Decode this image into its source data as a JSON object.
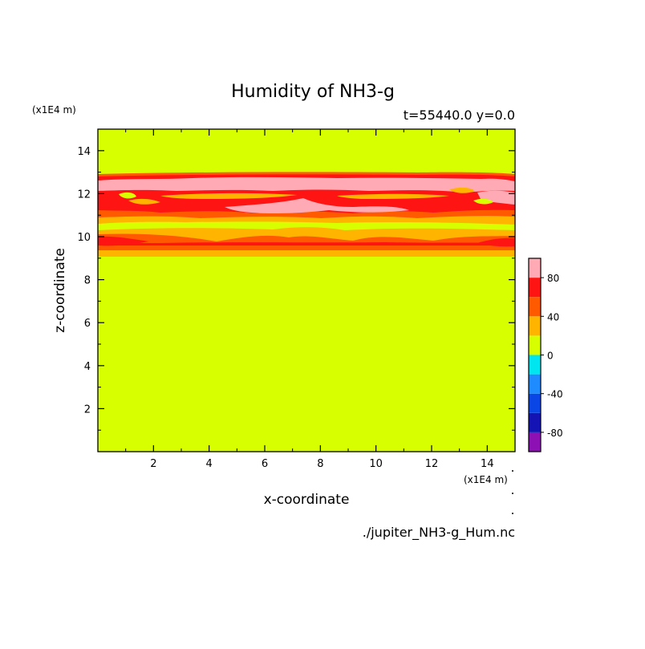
{
  "chart_data": {
    "type": "heatmap",
    "title": "Humidity of NH3-g",
    "subtitle": "t=55440.0 y=0.0",
    "xlabel": "x-coordinate",
    "ylabel": "z-coordinate",
    "x_unit": "(x1E4 m)",
    "y_unit": "(x1E4 m)",
    "source_file": "./jupiter_NH3-g_Hum.nc",
    "xlim": [
      0,
      15
    ],
    "ylim": [
      0,
      15
    ],
    "x_ticks": [
      2,
      4,
      6,
      8,
      10,
      12,
      14
    ],
    "y_ticks": [
      2,
      4,
      6,
      8,
      10,
      12,
      14
    ],
    "colorbar": {
      "levels": [
        -100,
        -80,
        -60,
        -40,
        -20,
        0,
        20,
        40,
        60,
        80,
        100
      ],
      "colors": [
        "#8c10b4",
        "#1414b4",
        "#0a46e6",
        "#1e8cff",
        "#00e6f0",
        "#d7ff00",
        "#ffb400",
        "#ff5a00",
        "#ff1414",
        "#ffaab4"
      ],
      "tick_labels": [
        "-80",
        "-40",
        "0",
        "40",
        "80"
      ],
      "tick_values": [
        -80,
        -40,
        0,
        40,
        80
      ]
    },
    "background_value_range": [
      0,
      20
    ],
    "bands": [
      {
        "description_value": "20-40",
        "z_range": [
          9.0,
          9.3
        ]
      },
      {
        "description_value": "40-60",
        "z_range": [
          9.3,
          9.9
        ]
      },
      {
        "description_value": "60-80",
        "z_range": [
          9.4,
          9.7
        ]
      },
      {
        "description_value": "20-40",
        "z_range": [
          10.9,
          11.3
        ]
      },
      {
        "description_value": "40-60",
        "z_range": [
          11.0,
          12.8
        ]
      },
      {
        "description_value": "60-80",
        "z_range": [
          11.2,
          12.8
        ]
      },
      {
        "description_value": "80-100",
        "z_range": [
          11.3,
          12.6
        ]
      }
    ]
  }
}
